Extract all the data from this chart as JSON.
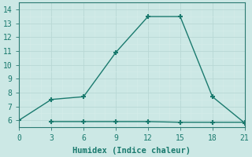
{
  "line1_x": [
    0,
    3,
    6,
    9,
    12,
    15,
    18,
    21
  ],
  "line1_y": [
    6.0,
    7.5,
    7.7,
    10.9,
    13.5,
    13.5,
    7.7,
    5.8
  ],
  "line2_x": [
    3,
    6,
    9,
    12,
    15,
    18,
    21
  ],
  "line2_y": [
    5.9,
    5.9,
    5.9,
    5.9,
    5.85,
    5.85,
    5.85
  ],
  "line_color": "#1a7a6e",
  "marker": "+",
  "marker_size": 5,
  "marker_linewidth": 1.5,
  "linewidth": 1.0,
  "xlabel": "Humidex (Indice chaleur)",
  "xlabel_fontsize": 7.5,
  "xlim": [
    0,
    21
  ],
  "ylim": [
    5.5,
    14.5
  ],
  "xticks": [
    0,
    3,
    6,
    9,
    12,
    15,
    18,
    21
  ],
  "yticks": [
    6,
    7,
    8,
    9,
    10,
    11,
    12,
    13,
    14
  ],
  "tick_fontsize": 7,
  "background_color": "#cce8e5",
  "grid_major_color": "#b8d8d5",
  "grid_minor_color": "#d5ecea",
  "spine_color": "#2a7a72"
}
